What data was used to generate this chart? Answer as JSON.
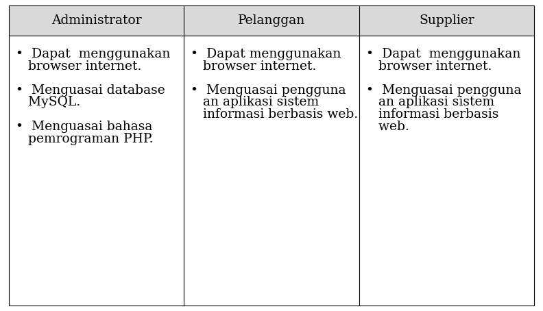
{
  "headers": [
    "Administrator",
    "Pelanggan",
    "Supplier"
  ],
  "header_bg": "#d9d9d9",
  "cell_bg": "#ffffff",
  "border_color": "#000000",
  "font_size": 13.5,
  "header_font_size": 13.5,
  "col0_items": [
    [
      "•  Dapat  menggunakan",
      "   browser internet."
    ],
    [
      "•  Menguasai database",
      "   MySQL."
    ],
    [
      "•  Menguasai bahasa",
      "   pemrograman PHP."
    ]
  ],
  "col1_items": [
    [
      "•  Dapat menggunakan",
      "   browser internet."
    ],
    [
      "•  Menguasai pengguna",
      "   an aplikasi sistem",
      "   informasi berbasis web."
    ]
  ],
  "col2_items": [
    [
      "•  Dapat  menggunakan",
      "   browser internet."
    ],
    [
      "•  Menguasai pengguna",
      "   an aplikasi sistem",
      "   informasi berbasis",
      "   web."
    ]
  ],
  "fig_width": 7.92,
  "fig_height": 4.54,
  "dpi": 100
}
